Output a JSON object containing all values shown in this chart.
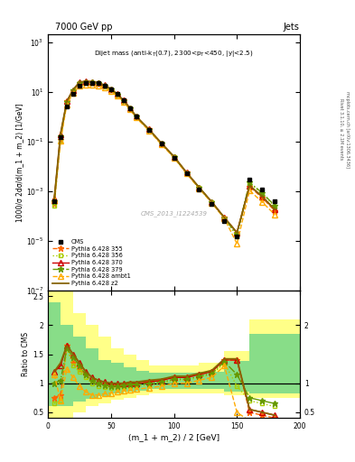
{
  "title_top_left": "7000 GeV pp",
  "title_top_right": "Jets",
  "annotation": "Dijet mass (anti-k$_T$(0.7), 2300<p$_T$<450, |y|<2.5)",
  "watermark": "CMS_2013_I1224539",
  "xlabel": "(m_1 + m_2) / 2 [GeV]",
  "ylabel_main": "1000/σ 2dσ/d(m_1 + m_2) [1/GeV]",
  "ylabel_ratio": "Ratio to CMS",
  "xlim": [
    0,
    200
  ],
  "ylim_main_lo": 1e-07,
  "ylim_main_hi": 2000,
  "ylim_ratio_lo": 0.4,
  "ylim_ratio_hi": 2.6,
  "x_data": [
    5,
    10,
    15,
    20,
    25,
    30,
    35,
    40,
    45,
    50,
    55,
    60,
    65,
    70,
    80,
    90,
    100,
    110,
    120,
    130,
    140,
    150,
    160,
    170,
    180
  ],
  "cms_y": [
    0.0004,
    0.15,
    2.5,
    8.0,
    18,
    22,
    23,
    22,
    18,
    13,
    8.0,
    4.5,
    2.2,
    1.0,
    0.3,
    0.08,
    0.022,
    0.005,
    0.0012,
    0.0003,
    6e-05,
    1.5e-05,
    0.003,
    0.0012,
    0.0004
  ],
  "ratio_355": [
    0.75,
    0.8,
    1.65,
    1.35,
    1.25,
    1.15,
    1.05,
    1.0,
    0.98,
    0.97,
    0.97,
    0.98,
    1.0,
    1.0,
    1.02,
    1.05,
    1.1,
    1.1,
    1.15,
    1.2,
    1.4,
    1.4,
    0.5,
    0.45,
    0.4
  ],
  "ratio_356": [
    0.65,
    0.7,
    1.6,
    1.3,
    1.2,
    1.1,
    1.0,
    0.95,
    0.93,
    0.92,
    0.92,
    0.93,
    0.95,
    0.95,
    0.97,
    1.0,
    1.05,
    1.05,
    1.1,
    1.15,
    1.35,
    0.95,
    0.7,
    0.65,
    0.6
  ],
  "ratio_370": [
    1.2,
    1.3,
    1.65,
    1.5,
    1.35,
    1.2,
    1.1,
    1.05,
    1.02,
    1.0,
    1.0,
    1.0,
    1.0,
    1.0,
    1.02,
    1.05,
    1.1,
    1.1,
    1.15,
    1.2,
    1.4,
    1.4,
    0.55,
    0.5,
    0.45
  ],
  "ratio_379": [
    1.0,
    1.05,
    1.6,
    1.45,
    1.3,
    1.15,
    1.05,
    1.0,
    0.97,
    0.95,
    0.95,
    0.96,
    0.98,
    0.98,
    1.0,
    1.02,
    1.07,
    1.07,
    1.12,
    1.17,
    1.37,
    1.15,
    0.75,
    0.7,
    0.65
  ],
  "ratio_ambt1": [
    1.15,
    0.7,
    1.25,
    1.1,
    0.95,
    0.85,
    0.8,
    0.8,
    0.82,
    0.83,
    0.85,
    0.87,
    0.88,
    0.9,
    0.92,
    0.95,
    1.0,
    1.0,
    1.05,
    1.1,
    1.3,
    0.5,
    0.35,
    0.3,
    0.28
  ],
  "ratio_z2": [
    1.2,
    1.35,
    1.65,
    1.5,
    1.35,
    1.2,
    1.1,
    1.05,
    1.02,
    1.0,
    1.0,
    1.0,
    1.02,
    1.02,
    1.05,
    1.07,
    1.12,
    1.12,
    1.17,
    1.22,
    1.42,
    1.42,
    0.55,
    0.5,
    0.45
  ],
  "color_355": "#ff6600",
  "color_356": "#aacc00",
  "color_370": "#cc0000",
  "color_379": "#669900",
  "color_ambt1": "#ffaa00",
  "color_z2": "#886600",
  "bg_yellow": "#ffff88",
  "bg_green": "#88dd88",
  "band_edges": [
    0,
    10,
    20,
    30,
    40,
    50,
    60,
    70,
    80,
    100,
    120,
    140,
    160,
    200
  ],
  "yellow_lo": [
    0.4,
    0.4,
    0.5,
    0.6,
    0.65,
    0.72,
    0.75,
    0.8,
    0.83,
    0.83,
    0.83,
    0.8,
    0.75
  ],
  "yellow_hi": [
    2.6,
    2.6,
    2.2,
    2.0,
    1.8,
    1.6,
    1.5,
    1.4,
    1.3,
    1.3,
    1.35,
    1.55,
    2.1
  ],
  "green_lo": [
    0.6,
    0.6,
    0.68,
    0.73,
    0.78,
    0.82,
    0.85,
    0.87,
    0.9,
    0.9,
    0.9,
    0.85,
    0.82
  ],
  "green_hi": [
    2.4,
    2.0,
    1.8,
    1.6,
    1.4,
    1.35,
    1.28,
    1.22,
    1.18,
    1.18,
    1.2,
    1.38,
    1.85
  ]
}
